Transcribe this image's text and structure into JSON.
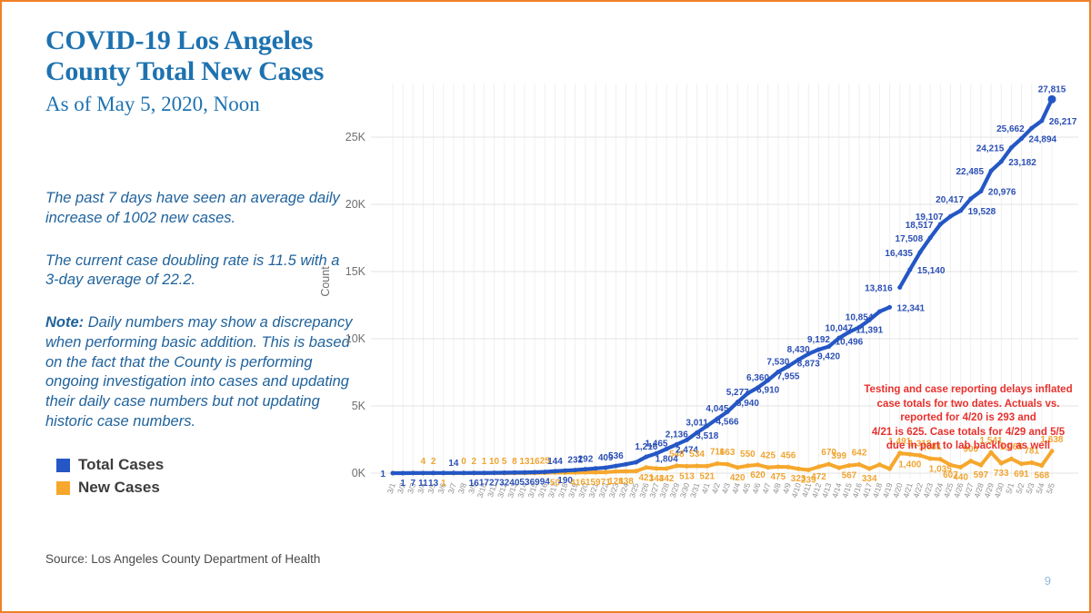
{
  "slide": {
    "title": "COVID-19 Los Angeles County Total New Cases",
    "subtitle": "As of May 5, 2020, Noon",
    "para1": "The past 7 days have seen an average daily increase of 1002 new cases.",
    "para2": "The current case doubling rate is 11.5 with a 3-day average of 22.2.",
    "note_label": "Note:",
    "note_body": " Daily numbers may show a discrepancy when performing basic addition. This is based on the fact that the County is performing ongoing investigation into cases and updating their daily case numbers but not updating historic case numbers.",
    "source": "Source: Los Angeles County Department of Health",
    "page_number": "9"
  },
  "legend": [
    {
      "label": "Total Cases",
      "color": "#2457c5"
    },
    {
      "label": "New Cases",
      "color": "#f6a72c"
    }
  ],
  "annotation": {
    "color": "#e8312d",
    "lines": [
      "Testing and case reporting delays inflated",
      "case totals for two dates.  Actuals vs.",
      "reported for 4/20 is 293 and",
      "4/21 is 625. Case totals for 4/29 and 5/5",
      "due in part to lab backlog as well"
    ]
  },
  "colors": {
    "border": "#ee8127",
    "title_blue": "#1e72b0",
    "total_line": "#2457c5",
    "new_line": "#f6a72c",
    "annotation_red": "#e8312d"
  },
  "chart_data": {
    "type": "line",
    "ylabel": "Count",
    "y_ticks": [
      "0K",
      "5K",
      "10K",
      "15K",
      "20K",
      "25K"
    ],
    "ylim": [
      0,
      28000
    ],
    "grid": true,
    "legend_position": "bottom-left",
    "gap_note": "Total Cases line has a visible break between 4/19 and 4/20",
    "series": [
      {
        "name": "Total Cases",
        "color": "#2457c5"
      },
      {
        "name": "New Cases",
        "color": "#f6a72c"
      }
    ],
    "days": [
      {
        "d": "3/1",
        "t": 1,
        "tl": "1",
        "tp": "l",
        "n": 1
      },
      {
        "d": "3/2",
        "t": 1,
        "tl": "1",
        "tp": "b",
        "n": 0
      },
      {
        "d": "3/3",
        "t": 7,
        "tl": "7",
        "tp": "b",
        "n": 6
      },
      {
        "d": "3/4",
        "t": 11,
        "tl": "11",
        "tp": "b",
        "n": 4,
        "nl": "4",
        "np": "a"
      },
      {
        "d": "3/5",
        "t": 13,
        "tl": "13",
        "tp": "b",
        "n": 2,
        "nl": "2",
        "np": "a"
      },
      {
        "d": "3/6",
        "t": 13,
        "n": 1,
        "nl": "1",
        "np": "b"
      },
      {
        "d": "3/7",
        "t": 14,
        "tl": "14",
        "tp": "a",
        "n": 1
      },
      {
        "d": "3/8",
        "t": 14,
        "n": 0,
        "nl": "0",
        "np": "a"
      },
      {
        "d": "3/9",
        "t": 16,
        "tl": "16",
        "tp": "b",
        "n": 2,
        "nl": "2",
        "np": "a"
      },
      {
        "d": "3/10",
        "t": 17,
        "tl": "17",
        "tp": "b",
        "n": 1,
        "nl": "1",
        "np": "a"
      },
      {
        "d": "3/11",
        "t": 27,
        "tl": "27",
        "tp": "b",
        "n": 10,
        "nl": "10",
        "np": "a"
      },
      {
        "d": "3/12",
        "t": 32,
        "tl": "32",
        "tp": "b",
        "n": 5,
        "nl": "5",
        "np": "a"
      },
      {
        "d": "3/13",
        "t": 40,
        "tl": "40",
        "tp": "b",
        "n": 8,
        "nl": "8",
        "np": "a"
      },
      {
        "d": "3/14",
        "t": 53,
        "tl": "53",
        "tp": "b",
        "n": 13,
        "nl": "13",
        "np": "a"
      },
      {
        "d": "3/15",
        "t": 69,
        "tl": "69",
        "tp": "b",
        "n": 16,
        "nl": "16",
        "np": "a"
      },
      {
        "d": "3/16",
        "t": 94,
        "tl": "94",
        "tp": "b",
        "n": 25,
        "nl": "25",
        "np": "a"
      },
      {
        "d": "3/17",
        "t": 144,
        "tl": "144",
        "tp": "a",
        "n": 50,
        "nl": "50",
        "np": "b"
      },
      {
        "d": "3/18",
        "t": 190,
        "tl": "190",
        "tp": "b",
        "n": 46
      },
      {
        "d": "3/19",
        "t": 231,
        "tl": "231",
        "tp": "a",
        "n": 41,
        "nl": "41",
        "np": "b"
      },
      {
        "d": "3/20",
        "t": 292,
        "tl": "292",
        "tp": "a",
        "n": 61,
        "nl": "61",
        "np": "b"
      },
      {
        "d": "3/21",
        "t": 351,
        "n": 59,
        "nl": "59",
        "np": "b"
      },
      {
        "d": "3/22",
        "t": 409,
        "tl": "409",
        "tp": "a",
        "n": 71,
        "nl": "71",
        "np": "b"
      },
      {
        "d": "3/23",
        "t": 536,
        "tl": "536",
        "tp": "a",
        "n": 128,
        "nl": "128",
        "np": "b"
      },
      {
        "d": "3/24",
        "t": 662,
        "n": 138,
        "nl": "138",
        "np": "b"
      },
      {
        "d": "3/25",
        "t": 812,
        "n": 150
      },
      {
        "d": "3/26",
        "t": 1216,
        "tl": "1,216",
        "tp": "a",
        "n": 421,
        "nl": "421",
        "np": "b"
      },
      {
        "d": "3/27",
        "t": 1465,
        "tl": "1,465",
        "tp": "a",
        "n": 344,
        "nl": "344",
        "np": "b"
      },
      {
        "d": "3/28",
        "t": 1804,
        "tl": "1,804",
        "tp": "b",
        "n": 342,
        "nl": "342",
        "np": "b"
      },
      {
        "d": "3/29",
        "t": 2136,
        "tl": "2,136",
        "tp": "a",
        "n": 548,
        "nl": "548",
        "np": "a"
      },
      {
        "d": "3/30",
        "t": 2474,
        "tl": "2,474",
        "tp": "b",
        "n": 513,
        "nl": "513",
        "np": "b"
      },
      {
        "d": "3/31",
        "t": 3011,
        "tl": "3,011",
        "tp": "a",
        "n": 534,
        "nl": "534",
        "np": "a"
      },
      {
        "d": "4/1",
        "t": 3518,
        "tl": "3,518",
        "tp": "b",
        "n": 521,
        "nl": "521",
        "np": "b"
      },
      {
        "d": "4/2",
        "t": 4045,
        "tl": "4,045",
        "tp": "a",
        "n": 711,
        "nl": "711",
        "np": "a"
      },
      {
        "d": "4/3",
        "t": 4566,
        "tl": "4,566",
        "tp": "b",
        "n": 663,
        "nl": "663",
        "np": "a"
      },
      {
        "d": "4/4",
        "t": 5277,
        "tl": "5,277",
        "tp": "a",
        "n": 420,
        "nl": "420",
        "np": "b"
      },
      {
        "d": "4/5",
        "t": 5940,
        "tl": "5,940",
        "tp": "b",
        "n": 550,
        "nl": "550",
        "np": "a"
      },
      {
        "d": "4/6",
        "t": 6360,
        "tl": "6,360",
        "tp": "a",
        "n": 620,
        "nl": "620",
        "np": "b"
      },
      {
        "d": "4/7",
        "t": 6910,
        "tl": "6,910",
        "tp": "b",
        "n": 425,
        "nl": "425",
        "np": "a"
      },
      {
        "d": "4/8",
        "t": 7530,
        "tl": "7,530",
        "tp": "a",
        "n": 475,
        "nl": "475",
        "np": "b"
      },
      {
        "d": "4/9",
        "t": 7955,
        "tl": "7,955",
        "tp": "b",
        "n": 456,
        "nl": "456",
        "np": "a"
      },
      {
        "d": "4/10",
        "t": 8430,
        "tl": "8,430",
        "tp": "a",
        "n": 323,
        "nl": "323",
        "np": "b"
      },
      {
        "d": "4/11",
        "t": 8873,
        "tl": "8,873",
        "tp": "b",
        "n": 239,
        "nl": "239",
        "np": "b"
      },
      {
        "d": "4/12",
        "t": 9192,
        "tl": "9,192",
        "tp": "a",
        "n": 472,
        "nl": "472",
        "np": "b"
      },
      {
        "d": "4/13",
        "t": 9420,
        "tl": "9,420",
        "tp": "b",
        "n": 670,
        "nl": "670",
        "np": "a"
      },
      {
        "d": "4/14",
        "t": 10047,
        "tl": "10,047",
        "tp": "a",
        "n": 399,
        "nl": "399",
        "np": "a"
      },
      {
        "d": "4/15",
        "t": 10496,
        "tl": "10,496",
        "tp": "b",
        "n": 567,
        "nl": "567",
        "np": "b"
      },
      {
        "d": "4/16",
        "t": 10854,
        "tl": "10,854",
        "tp": "a",
        "n": 642,
        "nl": "642",
        "np": "a"
      },
      {
        "d": "4/17",
        "t": 11391,
        "tl": "11,391",
        "tp": "b",
        "n": 334,
        "nl": "334",
        "np": "b"
      },
      {
        "d": "4/18",
        "t": 12021,
        "n": 630
      },
      {
        "d": "4/19",
        "t": 12341,
        "tl": "12,341",
        "tp": "r",
        "n": 320
      },
      {
        "d": "4/20",
        "t": 13816,
        "tl": "13,816",
        "tp": "l",
        "n": 1491,
        "nl": "1,491",
        "np": "a",
        "gapBefore": true
      },
      {
        "d": "4/21",
        "t": 15140,
        "tl": "15,140",
        "tp": "r",
        "n": 1400,
        "nl": "1,400",
        "np": "b"
      },
      {
        "d": "4/22",
        "t": 16435,
        "tl": "16,435",
        "tp": "l",
        "n": 1318,
        "nl": "1,318",
        "np": "a"
      },
      {
        "d": "4/23",
        "t": 17508,
        "tl": "17,508",
        "tp": "l",
        "n": 1081,
        "nl": "1,081",
        "np": "a"
      },
      {
        "d": "4/24",
        "t": 18517,
        "tl": "18,517",
        "tp": "l",
        "n": 1035,
        "nl": "1,035",
        "np": "b"
      },
      {
        "d": "4/25",
        "t": 19107,
        "tl": "19,107",
        "tp": "l",
        "n": 607,
        "nl": "607",
        "np": "b"
      },
      {
        "d": "4/26",
        "t": 19528,
        "tl": "19,528",
        "tp": "r",
        "n": 440,
        "nl": "440",
        "np": "b"
      },
      {
        "d": "4/27",
        "t": 20417,
        "tl": "20,417",
        "tp": "l",
        "n": 900,
        "nl": "900",
        "np": "a"
      },
      {
        "d": "4/28",
        "t": 20976,
        "tl": "20,976",
        "tp": "r",
        "n": 597,
        "nl": "597",
        "np": "b"
      },
      {
        "d": "4/29",
        "t": 22485,
        "tl": "22,485",
        "tp": "l",
        "n": 1541,
        "nl": "1,541",
        "np": "a"
      },
      {
        "d": "4/30",
        "t": 23182,
        "tl": "23,182",
        "tp": "r",
        "n": 733,
        "nl": "733",
        "np": "b"
      },
      {
        "d": "5/1",
        "t": 24215,
        "tl": "24,215",
        "tp": "l",
        "n": 1065,
        "nl": "1,065",
        "np": "a"
      },
      {
        "d": "5/2",
        "t": 24894,
        "tl": "24,894",
        "tp": "r",
        "n": 691,
        "nl": "691",
        "np": "b"
      },
      {
        "d": "5/3",
        "t": 25662,
        "tl": "25,662",
        "tp": "l",
        "n": 781,
        "nl": "781",
        "np": "a"
      },
      {
        "d": "5/4",
        "t": 26217,
        "tl": "26,217",
        "tp": "r",
        "n": 568,
        "nl": "568",
        "np": "b"
      },
      {
        "d": "5/5",
        "t": 27815,
        "tl": "27,815",
        "tp": "a",
        "n": 1638,
        "nl": "1,638",
        "np": "a"
      }
    ]
  }
}
